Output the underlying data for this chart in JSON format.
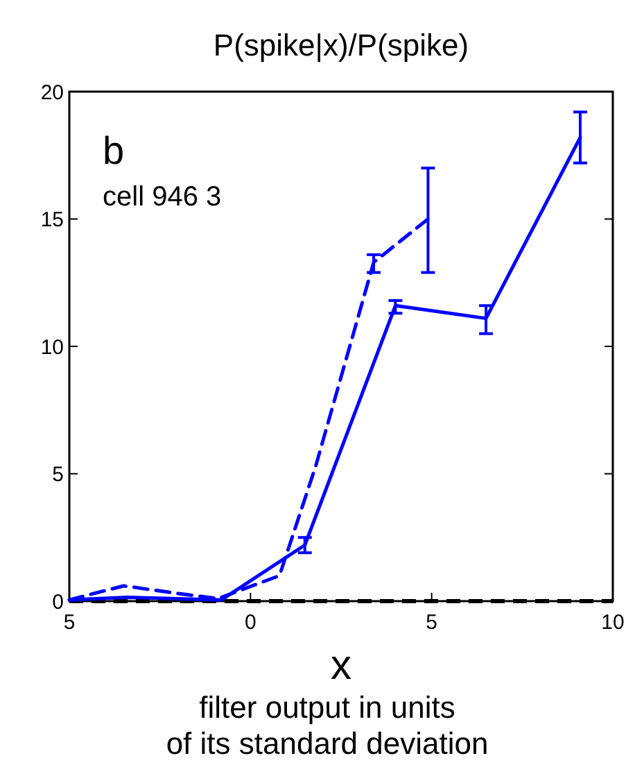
{
  "chart_data": {
    "type": "line",
    "title": "P(spike|x)/P(spike)",
    "xlabel": "x",
    "annotations": [
      "b",
      "cell 946 3",
      "filter output in units of its standard deviation"
    ],
    "xlim": [
      -5,
      10
    ],
    "ylim": [
      0,
      20
    ],
    "xticks": [
      {
        "value": -5,
        "label": "5"
      },
      0,
      5,
      10
    ],
    "yticks": [
      0,
      5,
      10,
      15,
      20
    ],
    "grid": false,
    "ref_lines": [
      {
        "axis": "y",
        "value": 0,
        "color": "#000000",
        "line_style": "dashed"
      }
    ],
    "series": [
      {
        "color": "#0000ff",
        "line_style": "solid",
        "x": [
          -5,
          -3.4,
          -0.8,
          1.5,
          4,
          6.5,
          9.1
        ],
        "values": [
          0.05,
          0.15,
          0.05,
          2.2,
          11.6,
          11.1,
          18.2
        ],
        "errors": [
          null,
          null,
          null,
          [
            1.9,
            2.5
          ],
          [
            11.3,
            11.8
          ],
          [
            10.5,
            11.6
          ],
          [
            17.2,
            19.2
          ]
        ]
      },
      {
        "color": "#0000ff",
        "line_style": "dashed",
        "x": [
          -5,
          -3.5,
          -2,
          -0.9,
          0.8,
          1.8,
          3.4,
          4.9
        ],
        "values": [
          0.05,
          0.6,
          0.3,
          0.1,
          1.0,
          5.3,
          13.3,
          15
        ],
        "errors": [
          null,
          null,
          null,
          null,
          null,
          null,
          [
            12.9,
            13.6
          ],
          [
            12.9,
            17
          ]
        ]
      }
    ]
  }
}
